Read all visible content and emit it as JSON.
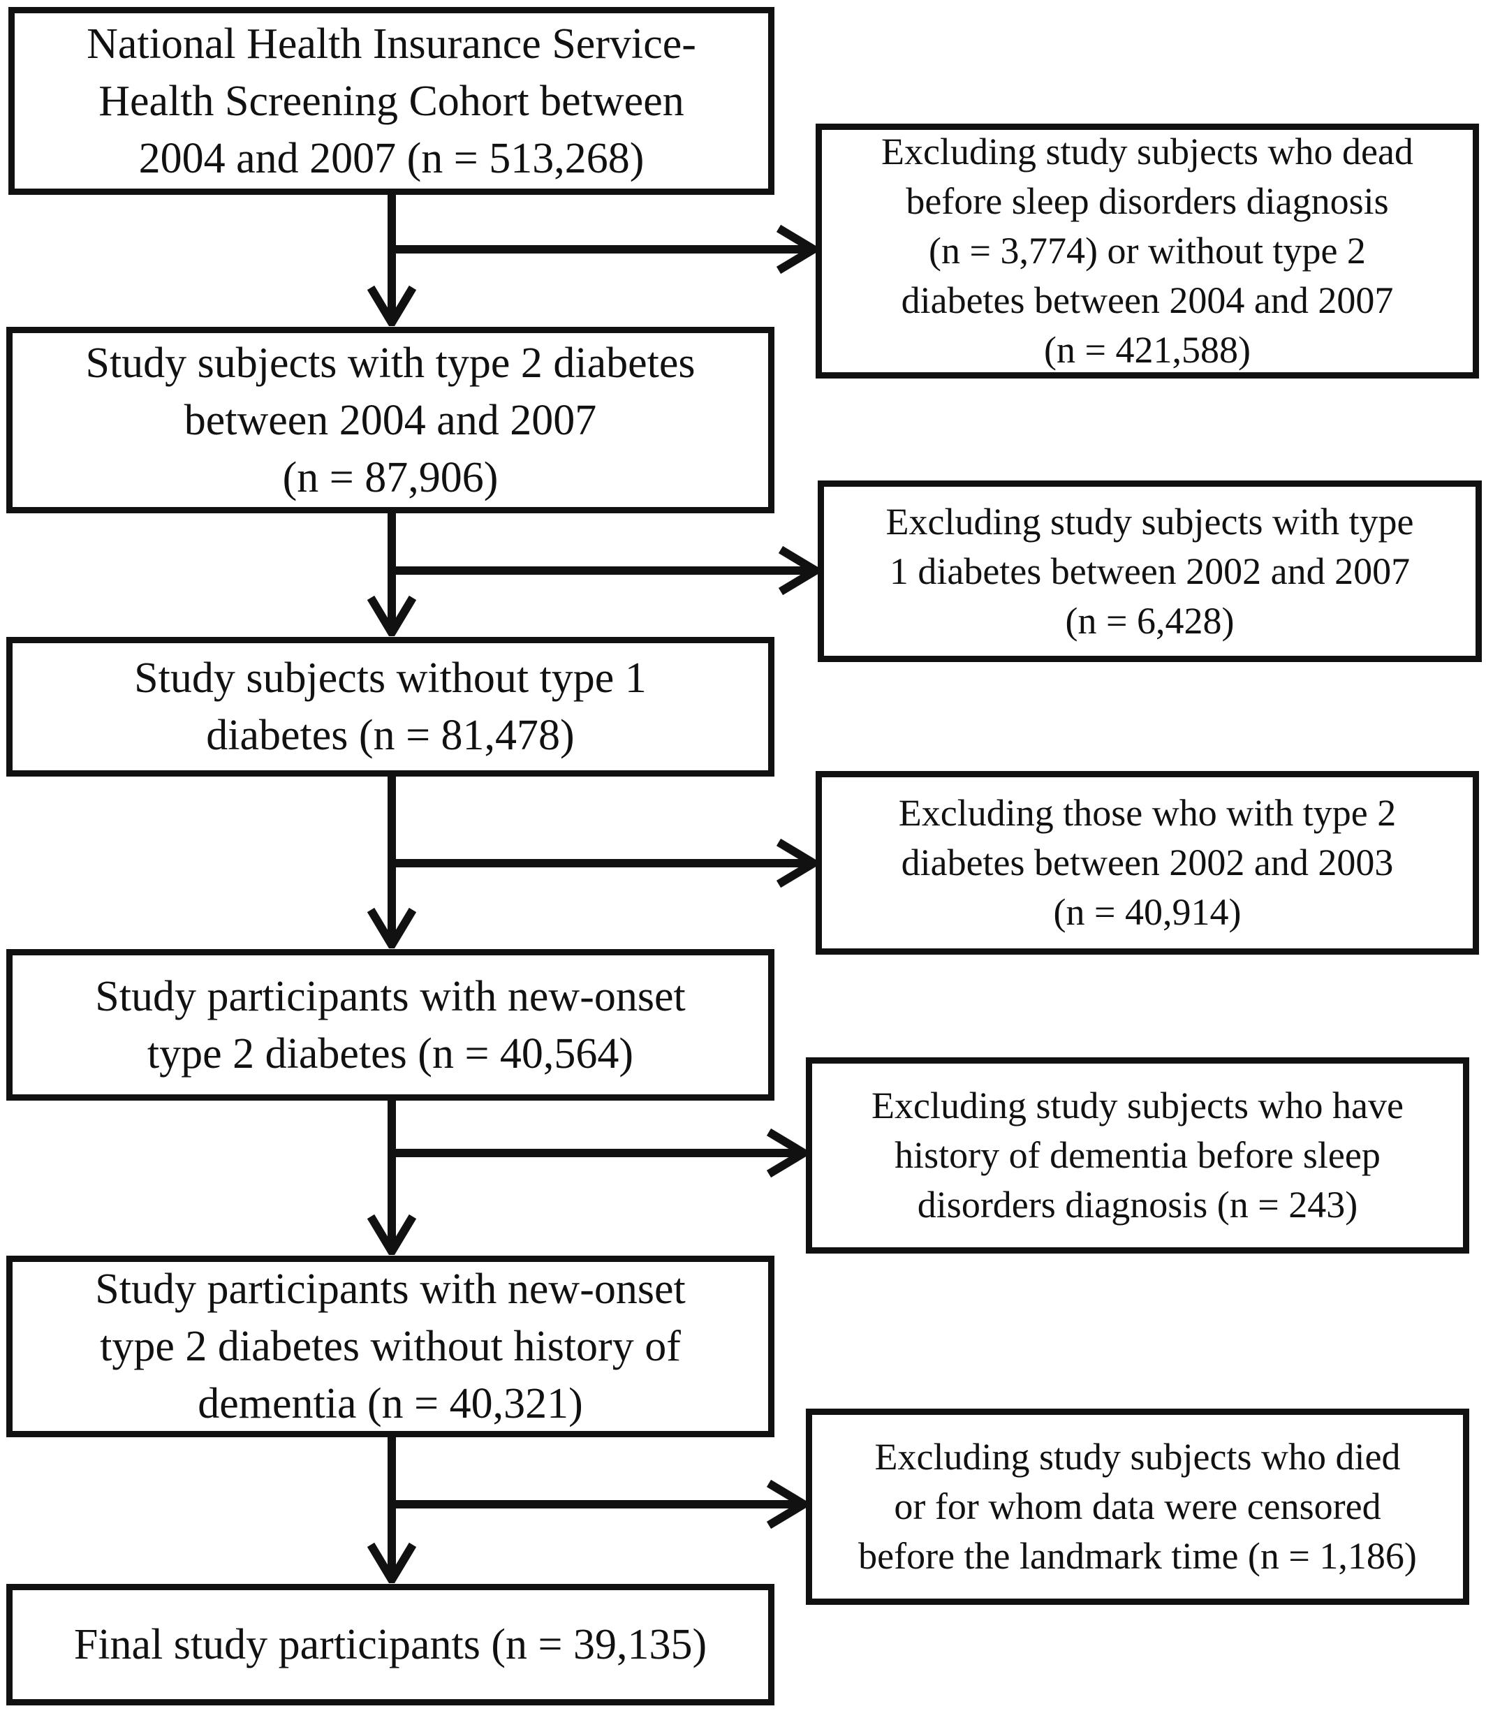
{
  "flowchart": {
    "main_boxes": [
      {
        "text": "National Health Insurance Service-\nHealth Screening Cohort between\n2004 and 2007 (n = 513,268)"
      },
      {
        "text": "Study subjects with type 2 diabetes\nbetween 2004 and 2007\n(n = 87,906)"
      },
      {
        "text": "Study subjects without type 1\ndiabetes (n = 81,478)"
      },
      {
        "text": "Study participants with new-onset\ntype 2 diabetes (n = 40,564)"
      },
      {
        "text": "Study participants with new-onset\ntype 2 diabetes without history of\ndementia (n = 40,321)"
      },
      {
        "text": "Final study participants (n = 39,135)"
      }
    ],
    "exclusion_boxes": [
      {
        "text": "Excluding study subjects who dead\nbefore sleep disorders diagnosis\n(n = 3,774) or without type 2\ndiabetes between 2004 and 2007\n(n = 421,588)"
      },
      {
        "text": "Excluding study subjects with type\n1 diabetes between 2002 and 2007\n(n = 6,428)"
      },
      {
        "text": "Excluding those who with type 2\ndiabetes between 2002 and 2003\n(n = 40,914)"
      },
      {
        "text": "Excluding study subjects who have\nhistory of dementia before sleep\ndisorders diagnosis (n = 243)"
      },
      {
        "text": "Excluding study subjects who died\nor for whom data were censored\nbefore the landmark time (n = 1,186)"
      }
    ],
    "line_color": "#111111"
  }
}
